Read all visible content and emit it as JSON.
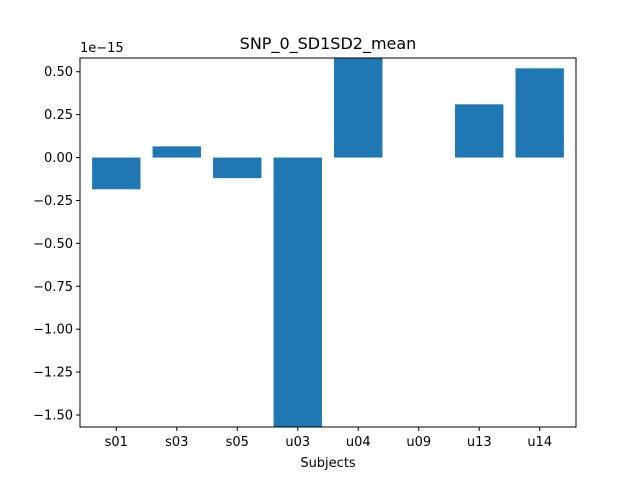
{
  "chart_data": {
    "type": "bar",
    "title": "SNP_0_SD1SD2_mean",
    "xlabel": "Subjects",
    "ylabel": "",
    "offset_text": "1e−15",
    "categories": [
      "s01",
      "s03",
      "s05",
      "u03",
      "u04",
      "u09",
      "u13",
      "u14"
    ],
    "values": [
      -0.185,
      0.065,
      -0.12,
      -1.57,
      0.58,
      0.0,
      0.31,
      0.52
    ],
    "value_scale": 1e-15,
    "ylim": [
      -1.57,
      0.58
    ],
    "yticks": [
      0.5,
      0.25,
      0.0,
      -0.25,
      -0.5,
      -0.75,
      -1.0,
      -1.25,
      -1.5
    ],
    "ytick_labels": [
      "0.50",
      "0.25",
      "0.00",
      "−0.25",
      "−0.50",
      "−0.75",
      "−1.00",
      "−1.25",
      "−1.50"
    ],
    "bar_color": "#1f77b4",
    "grid": false,
    "legend": "none"
  }
}
